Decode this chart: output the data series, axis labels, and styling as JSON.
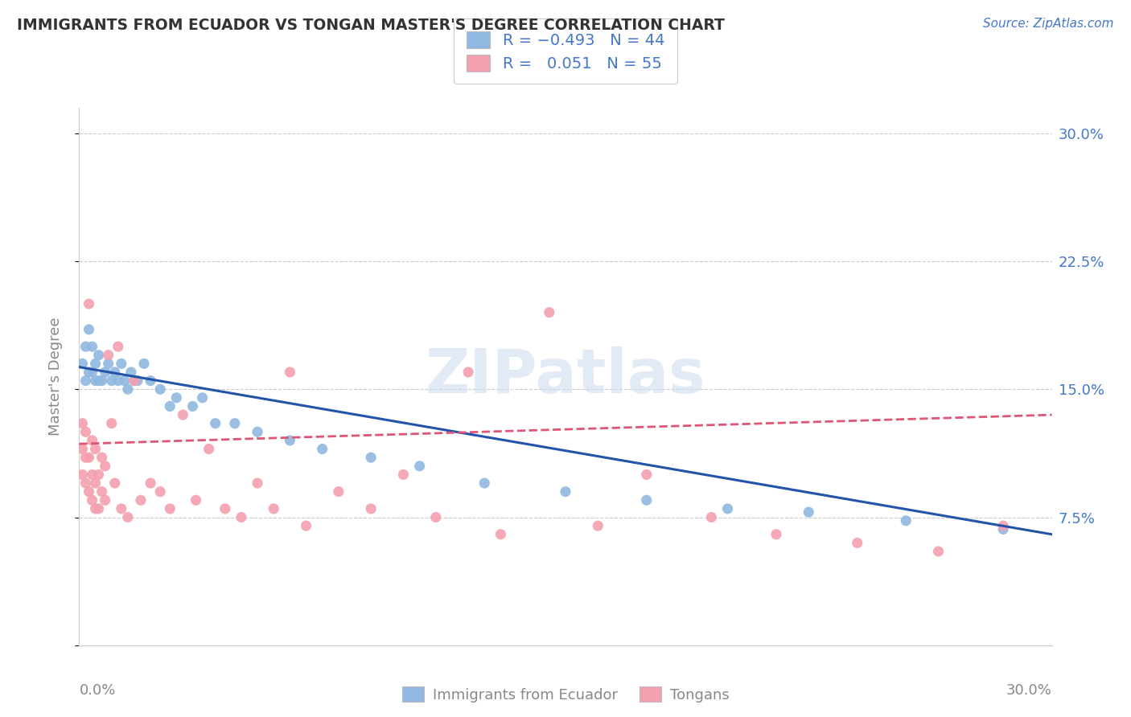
{
  "title": "IMMIGRANTS FROM ECUADOR VS TONGAN MASTER'S DEGREE CORRELATION CHART",
  "source_text": "Source: ZipAtlas.com",
  "ylabel": "Master's Degree",
  "yticks": [
    0.0,
    0.075,
    0.15,
    0.225,
    0.3
  ],
  "ytick_labels": [
    "",
    "7.5%",
    "15.0%",
    "22.5%",
    "30.0%"
  ],
  "xlim": [
    0.0,
    0.3
  ],
  "ylim": [
    0.0,
    0.315
  ],
  "watermark": "ZIPatlas",
  "blue_color": "#90b8e0",
  "pink_color": "#f4a0b0",
  "trend_blue_color": "#2255aa",
  "trend_pink_color": "#dd5577",
  "label_color": "#4477cc",
  "axis_label_color": "#888888",
  "grid_color": "#cccccc",
  "title_color": "#333333",
  "ecuador_x": [
    0.001,
    0.002,
    0.002,
    0.003,
    0.003,
    0.004,
    0.004,
    0.005,
    0.005,
    0.006,
    0.006,
    0.007,
    0.008,
    0.009,
    0.01,
    0.011,
    0.012,
    0.013,
    0.014,
    0.015,
    0.016,
    0.017,
    0.018,
    0.02,
    0.022,
    0.025,
    0.028,
    0.03,
    0.035,
    0.038,
    0.042,
    0.048,
    0.055,
    0.065,
    0.075,
    0.09,
    0.105,
    0.125,
    0.15,
    0.175,
    0.2,
    0.225,
    0.255,
    0.285
  ],
  "ecuador_y": [
    0.165,
    0.155,
    0.175,
    0.16,
    0.185,
    0.16,
    0.175,
    0.155,
    0.165,
    0.155,
    0.17,
    0.155,
    0.16,
    0.165,
    0.155,
    0.16,
    0.155,
    0.165,
    0.155,
    0.15,
    0.16,
    0.155,
    0.155,
    0.165,
    0.155,
    0.15,
    0.14,
    0.145,
    0.14,
    0.145,
    0.13,
    0.13,
    0.125,
    0.12,
    0.115,
    0.11,
    0.105,
    0.095,
    0.09,
    0.085,
    0.08,
    0.078,
    0.073,
    0.068
  ],
  "tongan_x": [
    0.001,
    0.001,
    0.001,
    0.002,
    0.002,
    0.002,
    0.003,
    0.003,
    0.003,
    0.004,
    0.004,
    0.004,
    0.005,
    0.005,
    0.005,
    0.006,
    0.006,
    0.007,
    0.007,
    0.008,
    0.008,
    0.009,
    0.01,
    0.011,
    0.012,
    0.013,
    0.015,
    0.017,
    0.019,
    0.022,
    0.025,
    0.028,
    0.032,
    0.036,
    0.04,
    0.045,
    0.05,
    0.055,
    0.06,
    0.065,
    0.07,
    0.08,
    0.09,
    0.1,
    0.11,
    0.12,
    0.13,
    0.145,
    0.16,
    0.175,
    0.195,
    0.215,
    0.24,
    0.265,
    0.285
  ],
  "tongan_y": [
    0.1,
    0.115,
    0.13,
    0.095,
    0.11,
    0.125,
    0.09,
    0.11,
    0.2,
    0.085,
    0.1,
    0.12,
    0.08,
    0.095,
    0.115,
    0.08,
    0.1,
    0.09,
    0.11,
    0.085,
    0.105,
    0.17,
    0.13,
    0.095,
    0.175,
    0.08,
    0.075,
    0.155,
    0.085,
    0.095,
    0.09,
    0.08,
    0.135,
    0.085,
    0.115,
    0.08,
    0.075,
    0.095,
    0.08,
    0.16,
    0.07,
    0.09,
    0.08,
    0.1,
    0.075,
    0.16,
    0.065,
    0.195,
    0.07,
    0.1,
    0.075,
    0.065,
    0.06,
    0.055,
    0.07
  ],
  "ec_trend_x0": 0.0,
  "ec_trend_y0": 0.163,
  "ec_trend_x1": 0.3,
  "ec_trend_y1": 0.065,
  "ton_trend_x0": 0.0,
  "ton_trend_y0": 0.118,
  "ton_trend_x1": 0.3,
  "ton_trend_y1": 0.135
}
